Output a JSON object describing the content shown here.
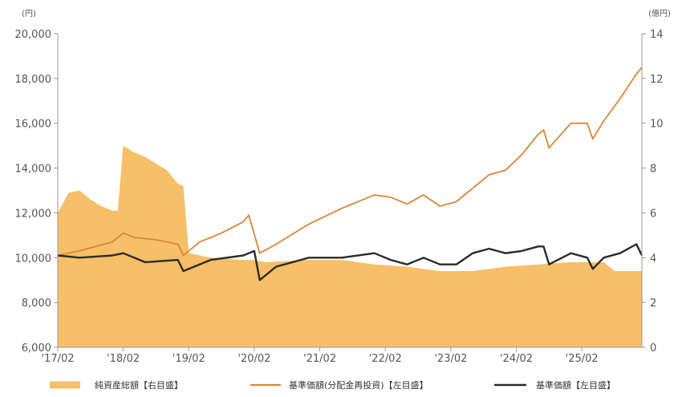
{
  "chart_data": {
    "type": "line",
    "left_unit": "(円)",
    "right_unit": "(億円)",
    "x_ticks": [
      "'17/02",
      "'18/02",
      "'19/02",
      "'20/02",
      "'21/02",
      "'22/02",
      "'23/02",
      "'24/02",
      "'25/02"
    ],
    "y_left_ticks": [
      "20,000",
      "18,000",
      "16,000",
      "14,000",
      "12,000",
      "10,000",
      "8,000",
      "6,000"
    ],
    "y_right_ticks": [
      "14",
      "12",
      "10",
      "8",
      "6",
      "4",
      "2",
      "0"
    ],
    "ylim_left": [
      6000,
      20000
    ],
    "ylim_right": [
      0,
      14
    ],
    "x_range": [
      "2017-02",
      "2026-01"
    ],
    "grid": false,
    "legend_position": "bottom",
    "colors": {
      "net_assets": "#f6bf68",
      "reinvested": "#d98736",
      "nav": "#2b2b2b"
    },
    "series": [
      {
        "name": "純資産総額【右目盛】",
        "axis": "right",
        "kind": "area",
        "x": [
          "2017-02",
          "2017-04",
          "2017-06",
          "2017-08",
          "2017-10",
          "2017-12",
          "2018-01",
          "2018-02",
          "2018-04",
          "2018-06",
          "2018-08",
          "2018-10",
          "2018-12",
          "2019-01",
          "2019-02",
          "2019-06",
          "2019-12",
          "2020-02",
          "2020-04",
          "2020-12",
          "2021-06",
          "2021-12",
          "2022-06",
          "2022-12",
          "2023-06",
          "2023-12",
          "2024-06",
          "2024-12",
          "2025-06",
          "2025-08",
          "2025-12",
          "2026-01"
        ],
        "values": [
          6.0,
          6.9,
          7.0,
          6.6,
          6.3,
          6.1,
          6.1,
          9.0,
          8.7,
          8.5,
          8.2,
          7.9,
          7.3,
          7.2,
          4.2,
          4.0,
          3.9,
          3.9,
          3.8,
          3.9,
          3.9,
          3.7,
          3.6,
          3.4,
          3.4,
          3.6,
          3.7,
          3.8,
          3.8,
          3.4,
          3.4,
          3.4
        ]
      },
      {
        "name": "基準価額(分配金再投資)【左目盛】",
        "axis": "left",
        "kind": "line",
        "x": [
          "2017-02",
          "2017-06",
          "2017-12",
          "2018-02",
          "2018-04",
          "2018-08",
          "2018-12",
          "2019-01",
          "2019-04",
          "2019-08",
          "2019-12",
          "2020-01",
          "2020-03",
          "2020-06",
          "2020-12",
          "2021-06",
          "2021-12",
          "2022-03",
          "2022-06",
          "2022-09",
          "2022-12",
          "2023-03",
          "2023-06",
          "2023-09",
          "2023-12",
          "2024-03",
          "2024-06",
          "2024-07",
          "2024-08",
          "2024-12",
          "2025-03",
          "2025-04",
          "2025-06",
          "2025-09",
          "2025-12",
          "2026-01"
        ],
        "values": [
          10100,
          10300,
          10700,
          11100,
          10900,
          10800,
          10600,
          10100,
          10700,
          11100,
          11600,
          11900,
          10200,
          10600,
          11500,
          12200,
          12800,
          12700,
          12400,
          12800,
          12300,
          12500,
          13100,
          13700,
          13900,
          14600,
          15500,
          15700,
          14900,
          16000,
          16000,
          15300,
          16100,
          17100,
          18200,
          18500
        ]
      },
      {
        "name": "基準価額【左目盛】",
        "axis": "left",
        "kind": "line",
        "x": [
          "2017-02",
          "2017-06",
          "2017-12",
          "2018-02",
          "2018-06",
          "2018-12",
          "2019-01",
          "2019-06",
          "2019-12",
          "2020-02",
          "2020-03",
          "2020-06",
          "2020-12",
          "2021-06",
          "2021-12",
          "2022-03",
          "2022-06",
          "2022-09",
          "2022-12",
          "2023-03",
          "2023-06",
          "2023-09",
          "2023-12",
          "2024-03",
          "2024-06",
          "2024-07",
          "2024-08",
          "2024-12",
          "2025-03",
          "2025-04",
          "2025-06",
          "2025-09",
          "2025-12",
          "2026-01"
        ],
        "values": [
          10100,
          10000,
          10100,
          10200,
          9800,
          9900,
          9400,
          9900,
          10100,
          10300,
          9000,
          9600,
          10000,
          10000,
          10200,
          9900,
          9700,
          10000,
          9700,
          9700,
          10200,
          10400,
          10200,
          10300,
          10500,
          10500,
          9700,
          10200,
          10000,
          9500,
          10000,
          10200,
          10600,
          10100
        ]
      }
    ]
  }
}
